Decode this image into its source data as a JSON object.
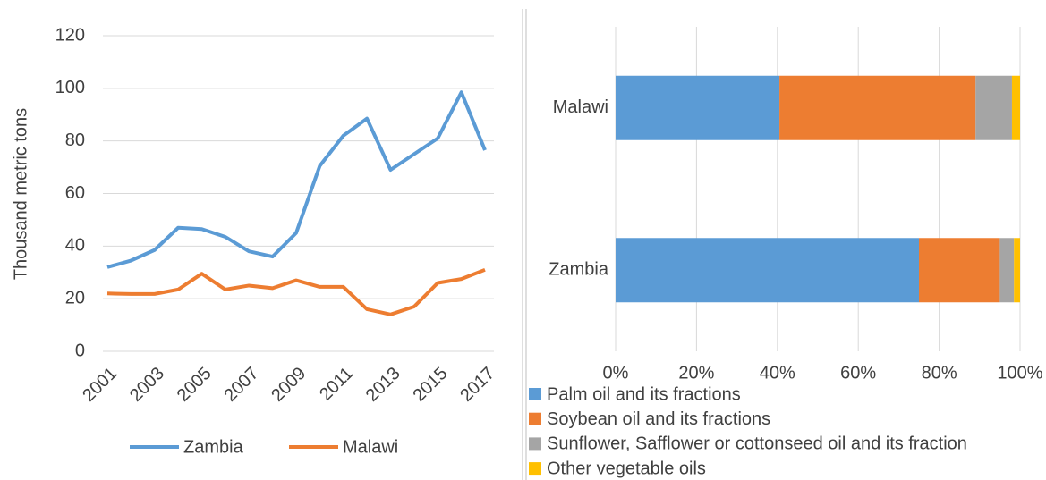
{
  "chart_data": [
    {
      "type": "line",
      "y_label": "Thousand metric tons",
      "x": [
        2001,
        2002,
        2003,
        2004,
        2005,
        2006,
        2007,
        2008,
        2009,
        2010,
        2011,
        2012,
        2013,
        2014,
        2015,
        2016,
        2017
      ],
      "xlim": [
        2001,
        2017
      ],
      "xticks": [
        2001,
        2003,
        2005,
        2007,
        2009,
        2011,
        2013,
        2015,
        2017
      ],
      "ylim": [
        0,
        120
      ],
      "yticks": [
        0,
        20,
        40,
        60,
        80,
        100,
        120
      ],
      "grid": true,
      "legend": "bottom",
      "series": [
        {
          "name": "Zambia",
          "color": "#5b9bd5",
          "values": [
            32,
            34.5,
            38.5,
            47,
            46.5,
            43.5,
            38,
            36,
            45,
            70.5,
            82,
            88.5,
            69,
            75,
            81,
            98.5,
            76.5
          ]
        },
        {
          "name": "Malawi",
          "color": "#ed7d31",
          "values": [
            22,
            21.8,
            21.8,
            23.5,
            29.5,
            23.5,
            25,
            24,
            27,
            24.5,
            24.5,
            16,
            14,
            17,
            26,
            27.5,
            31
          ]
        }
      ]
    },
    {
      "type": "stacked-barh",
      "categories": [
        "Malawi",
        "Zambia"
      ],
      "xlim": [
        0,
        100
      ],
      "xticks": [
        {
          "value": 0,
          "label": "0%"
        },
        {
          "value": 20,
          "label": "20%"
        },
        {
          "value": 40,
          "label": "40%"
        },
        {
          "value": 60,
          "label": "60%"
        },
        {
          "value": 80,
          "label": "80%"
        },
        {
          "value": 100,
          "label": "100%"
        }
      ],
      "grid": true,
      "legend": "bottom",
      "series": [
        {
          "name": "Palm oil and its fractions",
          "color": "#5b9bd5",
          "values": [
            40.5,
            75
          ]
        },
        {
          "name": "Soybean oil and its fractions",
          "color": "#ed7d31",
          "values": [
            48.5,
            20
          ]
        },
        {
          "name": "Sunflower, Safflower or cottonseed oil and its fraction",
          "color": "#a5a5a5",
          "values": [
            9,
            3.5
          ]
        },
        {
          "name": "Other vegetable oils",
          "color": "#ffc000",
          "values": [
            2,
            1.5
          ]
        }
      ]
    }
  ]
}
